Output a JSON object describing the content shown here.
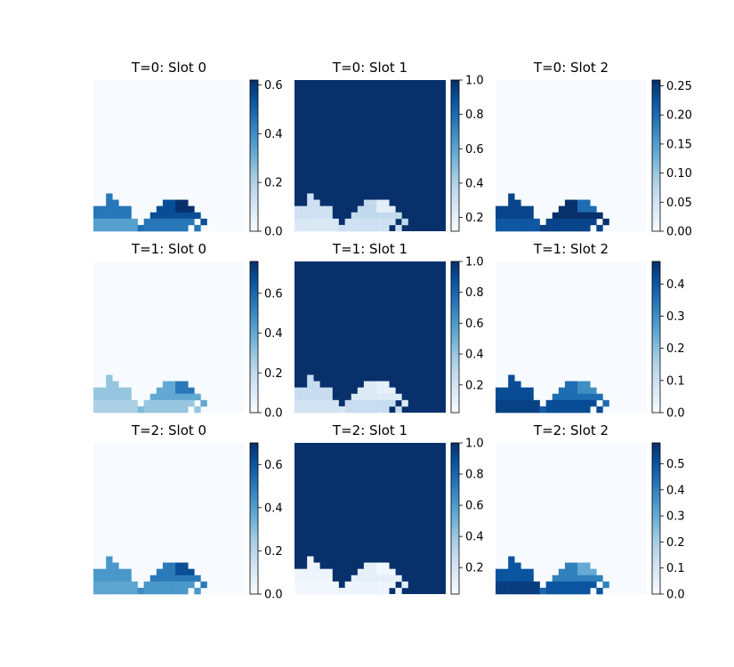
{
  "chart_data": [
    {
      "type": "heatmap",
      "title": "T=0: Slot 0",
      "colormap": "Blues",
      "colorbar_range": [
        0,
        0.62
      ],
      "colorbar_ticks": [
        "0.0",
        "0.2",
        "0.4",
        "0.6"
      ],
      "grid_size": [
        24,
        24
      ],
      "object_values": [
        0.35,
        0.45,
        0.55,
        0.62
      ],
      "background_value": 0.0
    },
    {
      "type": "heatmap",
      "title": "T=0: Slot 1",
      "colormap": "Blues",
      "colorbar_range": [
        0.12,
        1.0
      ],
      "colorbar_ticks": [
        "0.2",
        "0.4",
        "0.6",
        "0.8",
        "1.0"
      ],
      "grid_size": [
        24,
        24
      ],
      "object_values": [
        0.25,
        0.3,
        0.35,
        0.2
      ],
      "background_value": 1.0
    },
    {
      "type": "heatmap",
      "title": "T=0: Slot 2",
      "colormap": "Blues",
      "colorbar_range": [
        0,
        0.26
      ],
      "colorbar_ticks": [
        "0.00",
        "0.05",
        "0.10",
        "0.15",
        "0.20",
        "0.25"
      ],
      "grid_size": [
        24,
        24
      ],
      "object_values": [
        0.22,
        0.24,
        0.26,
        0.2
      ],
      "background_value": 0.0
    },
    {
      "type": "heatmap",
      "title": "T=1: Slot 0",
      "colormap": "Blues",
      "colorbar_range": [
        0,
        0.76
      ],
      "colorbar_ticks": [
        "0.0",
        "0.2",
        "0.4",
        "0.6"
      ],
      "grid_size": [
        24,
        24
      ],
      "object_values": [
        0.25,
        0.3,
        0.4,
        0.55
      ],
      "background_value": 0.0
    },
    {
      "type": "heatmap",
      "title": "T=1: Slot 1",
      "colormap": "Blues",
      "colorbar_range": [
        0.02,
        1.0
      ],
      "colorbar_ticks": [
        "0.2",
        "0.4",
        "0.6",
        "0.8",
        "1.0"
      ],
      "grid_size": [
        24,
        24
      ],
      "object_values": [
        0.2,
        0.25,
        0.15,
        0.1
      ],
      "background_value": 1.0
    },
    {
      "type": "heatmap",
      "title": "T=1: Slot 2",
      "colormap": "Blues",
      "colorbar_range": [
        0,
        0.47
      ],
      "colorbar_ticks": [
        "0.0",
        "0.1",
        "0.2",
        "0.3",
        "0.4"
      ],
      "grid_size": [
        24,
        24
      ],
      "object_values": [
        0.44,
        0.42,
        0.36,
        0.3
      ],
      "background_value": 0.0
    },
    {
      "type": "heatmap",
      "title": "T=2: Slot 0",
      "colormap": "Blues",
      "colorbar_range": [
        0,
        0.7
      ],
      "colorbar_ticks": [
        "0.0",
        "0.2",
        "0.4",
        "0.6"
      ],
      "grid_size": [
        24,
        24
      ],
      "object_values": [
        0.38,
        0.42,
        0.5,
        0.62
      ],
      "background_value": 0.0
    },
    {
      "type": "heatmap",
      "title": "T=2: Slot 1",
      "colormap": "Blues",
      "colorbar_range": [
        0.03,
        1.0
      ],
      "colorbar_ticks": [
        "0.2",
        "0.4",
        "0.6",
        "0.8",
        "1.0"
      ],
      "grid_size": [
        24,
        24
      ],
      "object_values": [
        0.05,
        0.08,
        0.12,
        0.06
      ],
      "background_value": 1.0
    },
    {
      "type": "heatmap",
      "title": "T=2: Slot 2",
      "colormap": "Blues",
      "colorbar_range": [
        0,
        0.58
      ],
      "colorbar_ticks": [
        "0.0",
        "0.1",
        "0.2",
        "0.3",
        "0.4",
        "0.5"
      ],
      "grid_size": [
        24,
        24
      ],
      "object_values": [
        0.55,
        0.5,
        0.4,
        0.3
      ],
      "background_value": 0.0
    }
  ]
}
